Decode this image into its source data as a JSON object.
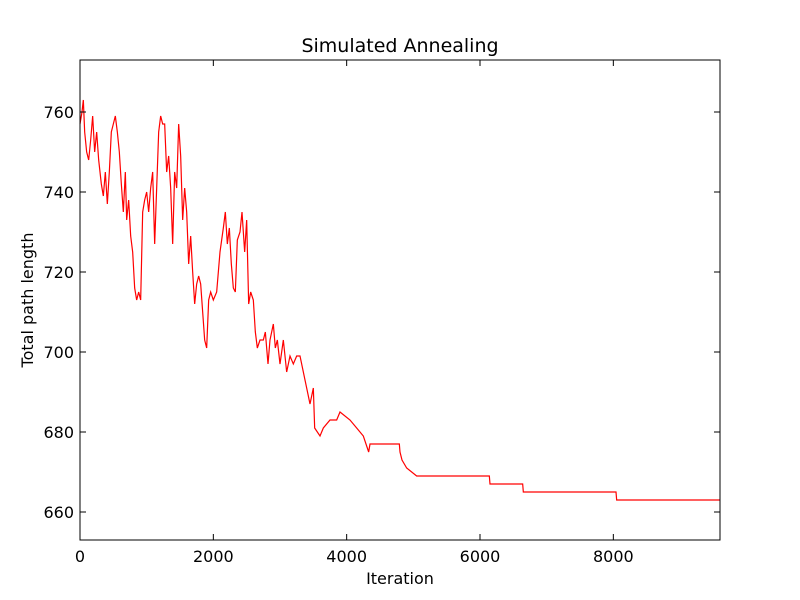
{
  "chart_data": {
    "type": "line",
    "title": "Simulated Annealing",
    "x_label": "Iteration",
    "y_label": "Total path length",
    "x": [
      0,
      30,
      50,
      70,
      100,
      130,
      160,
      190,
      220,
      250,
      280,
      320,
      350,
      380,
      410,
      440,
      470,
      500,
      530,
      560,
      590,
      620,
      650,
      680,
      700,
      730,
      760,
      790,
      820,
      850,
      880,
      910,
      940,
      970,
      1000,
      1030,
      1060,
      1090,
      1120,
      1150,
      1180,
      1210,
      1240,
      1270,
      1300,
      1330,
      1360,
      1390,
      1420,
      1450,
      1480,
      1510,
      1540,
      1570,
      1600,
      1630,
      1660,
      1690,
      1720,
      1750,
      1780,
      1810,
      1840,
      1870,
      1900,
      1930,
      1960,
      2000,
      2050,
      2100,
      2150,
      2180,
      2210,
      2240,
      2270,
      2300,
      2330,
      2360,
      2400,
      2430,
      2470,
      2500,
      2530,
      2560,
      2600,
      2630,
      2660,
      2700,
      2750,
      2780,
      2820,
      2850,
      2900,
      2930,
      2960,
      3000,
      3050,
      3100,
      3150,
      3200,
      3250,
      3300,
      3350,
      3400,
      3450,
      3500,
      3520,
      3600,
      3650,
      3750,
      3850,
      3900,
      4050,
      4150,
      4250,
      4330,
      4350,
      4790,
      4800,
      4830,
      4900,
      5050,
      6140,
      6150,
      6640,
      6650,
      8040,
      8050,
      9600
    ],
    "series": [
      {
        "name": "Total path length",
        "color": "#ff0000",
        "values": [
          757,
          760,
          763,
          755,
          750,
          748,
          753,
          759,
          750,
          755,
          748,
          742,
          739,
          745,
          737,
          745,
          755,
          757,
          759,
          755,
          750,
          742,
          735,
          745,
          733,
          738,
          729,
          725,
          716,
          713,
          715,
          713,
          735,
          738,
          740,
          735,
          741,
          745,
          727,
          741,
          755,
          759,
          757,
          757,
          745,
          749,
          741,
          727,
          745,
          741,
          757,
          749,
          733,
          741,
          735,
          722,
          729,
          720,
          712,
          717,
          719,
          717,
          710,
          703,
          701,
          713,
          715,
          713,
          715,
          725,
          731,
          735,
          727,
          731,
          722,
          716,
          715,
          728,
          730,
          735,
          725,
          733,
          712,
          715,
          713,
          705,
          701,
          703,
          703,
          705,
          697,
          703,
          707,
          701,
          703,
          697,
          703,
          695,
          699,
          697,
          699,
          699,
          695,
          691,
          687,
          691,
          681,
          679,
          681,
          683,
          683,
          685,
          683,
          681,
          679,
          675,
          677,
          677,
          675,
          673,
          671,
          669,
          669,
          667,
          667,
          665,
          665,
          663,
          663
        ]
      }
    ],
    "xlim": [
      0,
      9600
    ],
    "ylim": [
      653,
      773
    ],
    "xticks": [
      0,
      2000,
      4000,
      6000,
      8000
    ],
    "yticks": [
      660,
      680,
      700,
      720,
      740,
      760
    ]
  }
}
